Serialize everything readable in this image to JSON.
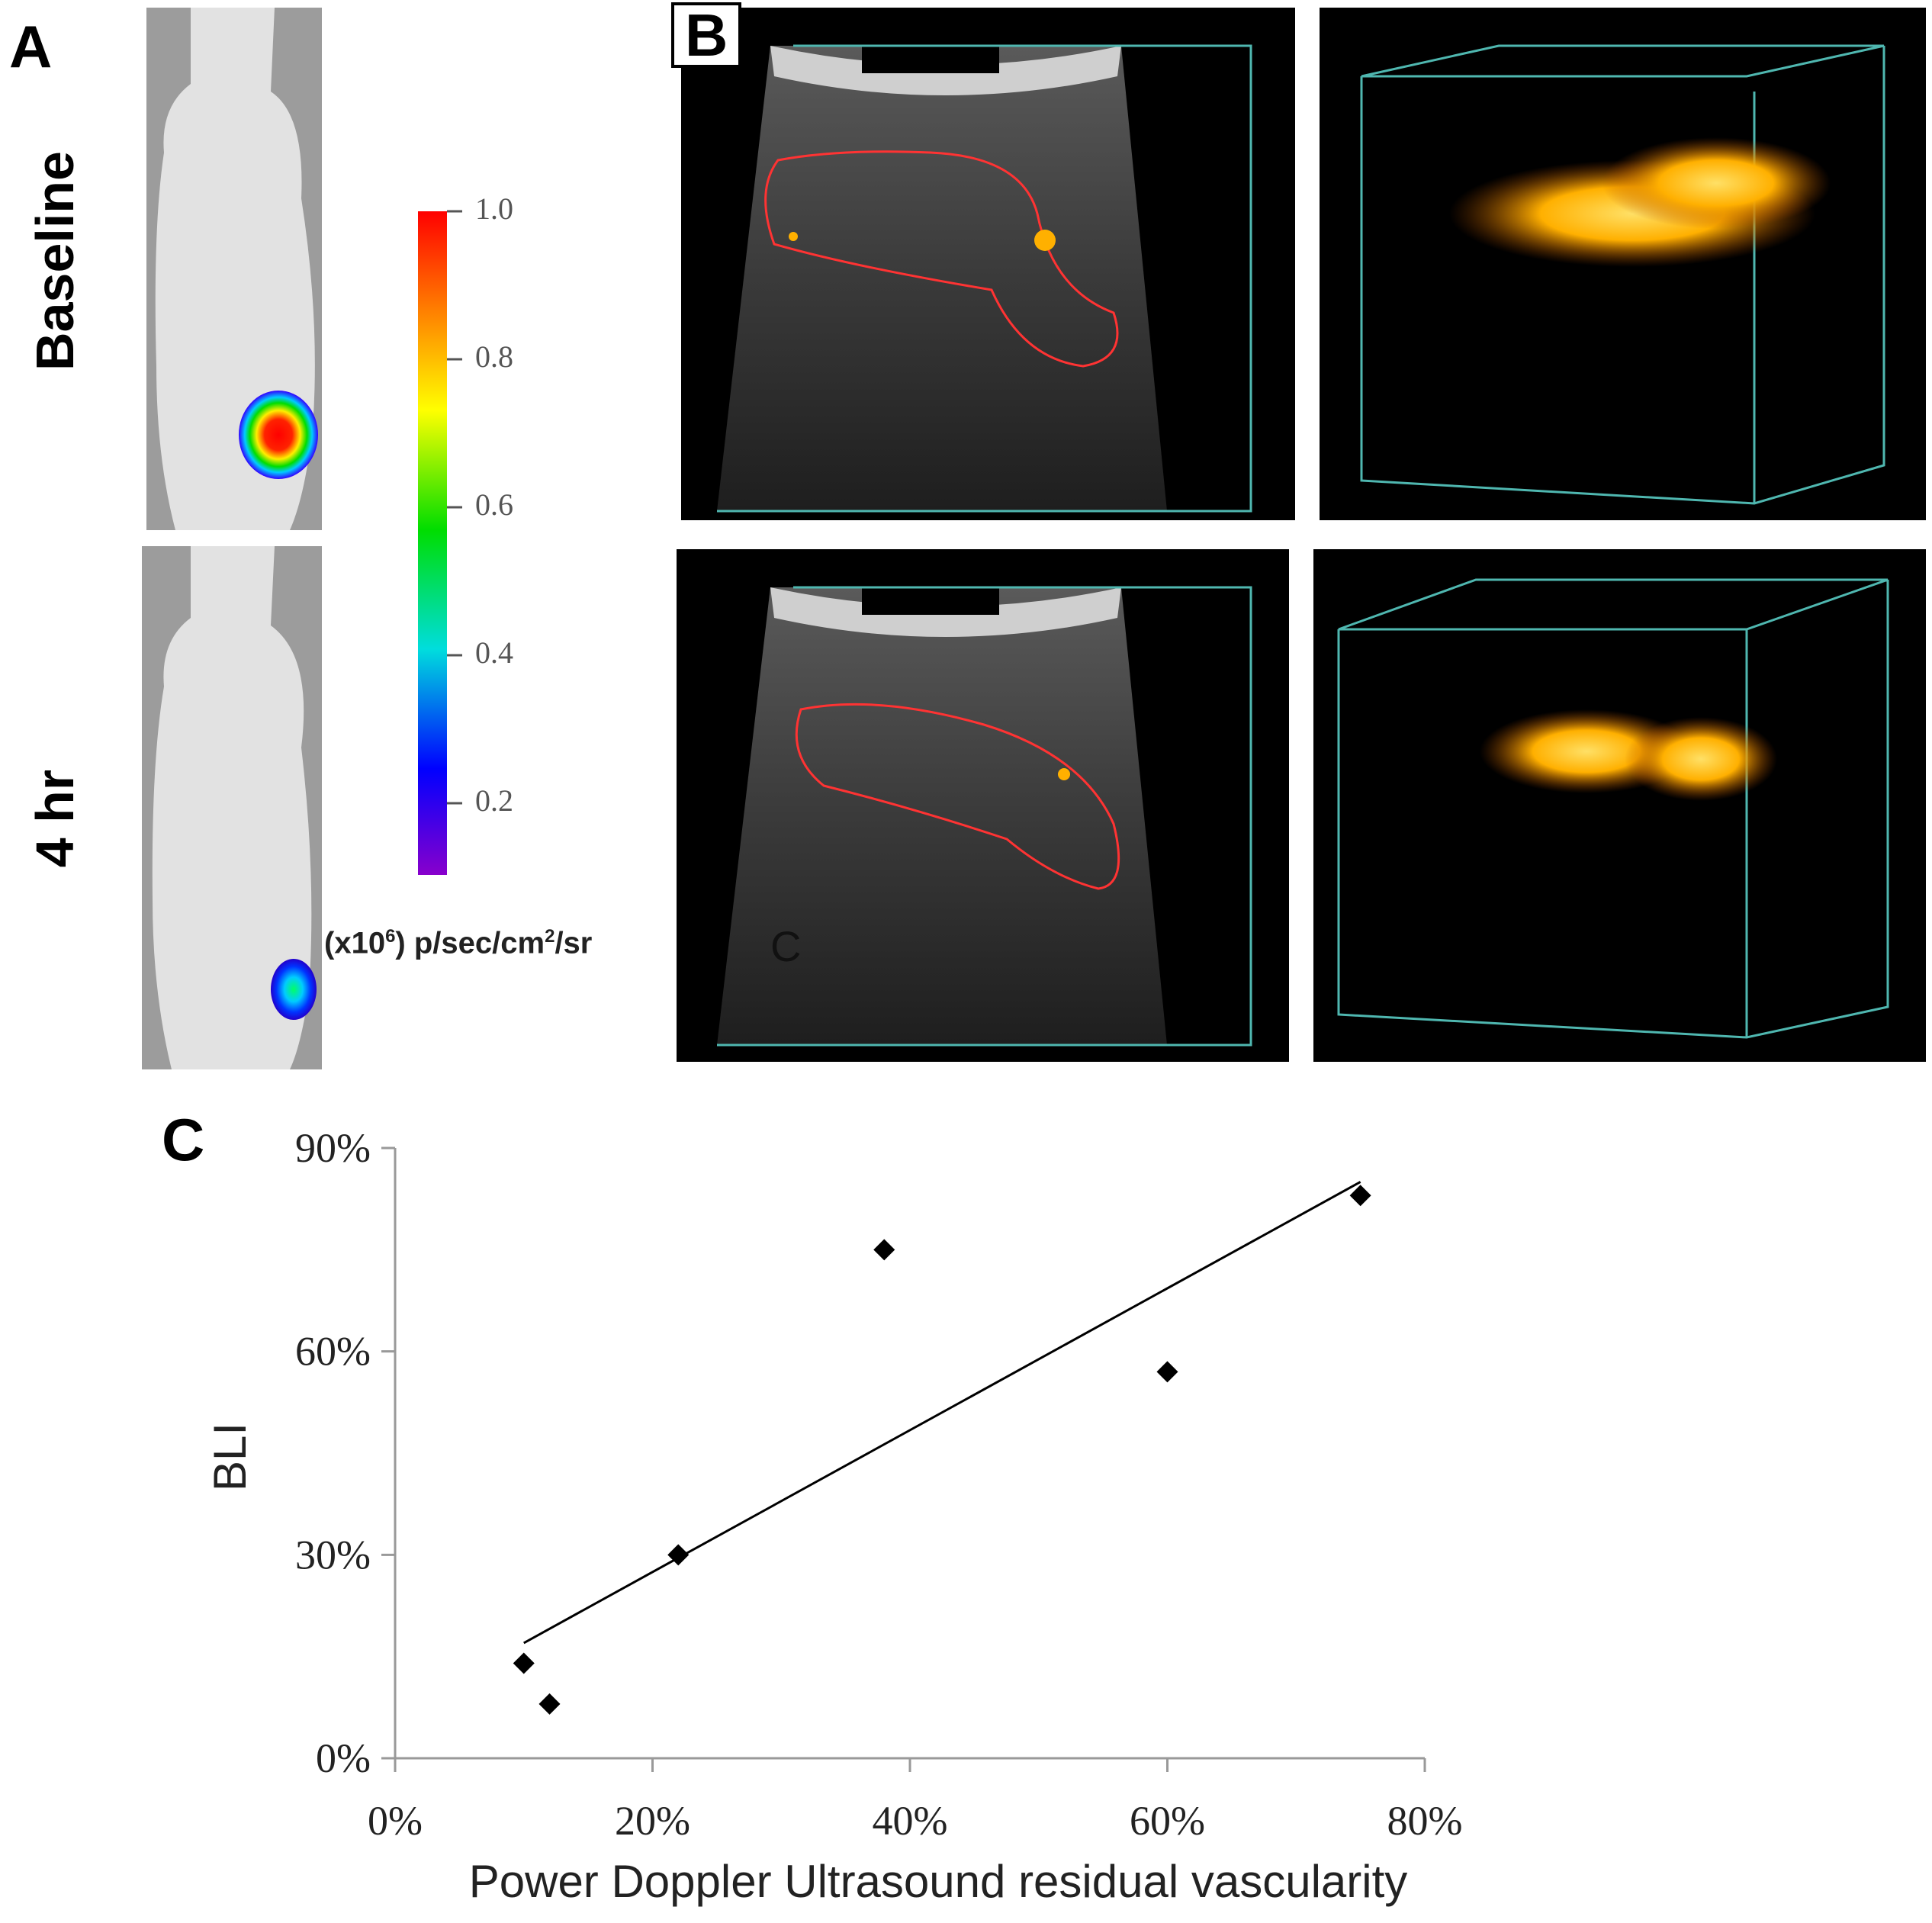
{
  "panels": {
    "a": {
      "letter": "A",
      "row_labels": [
        "Baseline",
        "4 hr"
      ],
      "colorbar": {
        "ticks": [
          "1.0",
          "0.8",
          "0.6",
          "0.4",
          "0.2"
        ],
        "tick_values": [
          1.0,
          0.8,
          0.6,
          0.4,
          0.2
        ],
        "unit_prefix": "(x10",
        "unit_exp": "6",
        "unit_mid": ") p/sec/cm",
        "unit_exp2": "2",
        "unit_suffix": "/sr",
        "colors": [
          "#ff0000",
          "#ff8800",
          "#ffff00",
          "#00dd00",
          "#00dddd",
          "#0000ff",
          "#8800cc"
        ]
      }
    },
    "b": {
      "letter": "B",
      "stray_letter": "C",
      "overlay_color": "#ff3333",
      "flow_color": "#ffb000",
      "box_color": "#4fb7b0"
    },
    "c": {
      "letter": "C"
    }
  },
  "chart_data": {
    "type": "scatter",
    "xlabel": "Power Doppler Ultrasound residual vascularity",
    "ylabel": "BLI",
    "xlim": [
      0,
      80
    ],
    "ylim": [
      0,
      90
    ],
    "x_ticks": [
      0,
      20,
      40,
      60,
      80
    ],
    "x_tick_labels": [
      "0%",
      "20%",
      "40%",
      "60%",
      "80%"
    ],
    "y_ticks": [
      0,
      30,
      60,
      90
    ],
    "y_tick_labels": [
      "0%",
      "30%",
      "60%",
      "90%"
    ],
    "points": [
      {
        "x": 10,
        "y": 14
      },
      {
        "x": 12,
        "y": 8
      },
      {
        "x": 22,
        "y": 30
      },
      {
        "x": 38,
        "y": 75
      },
      {
        "x": 60,
        "y": 57
      },
      {
        "x": 75,
        "y": 83
      }
    ],
    "trendline": {
      "x": [
        10,
        75
      ],
      "y": [
        17,
        85
      ]
    },
    "grid": false,
    "marker": "diamond",
    "marker_color": "#000000"
  }
}
